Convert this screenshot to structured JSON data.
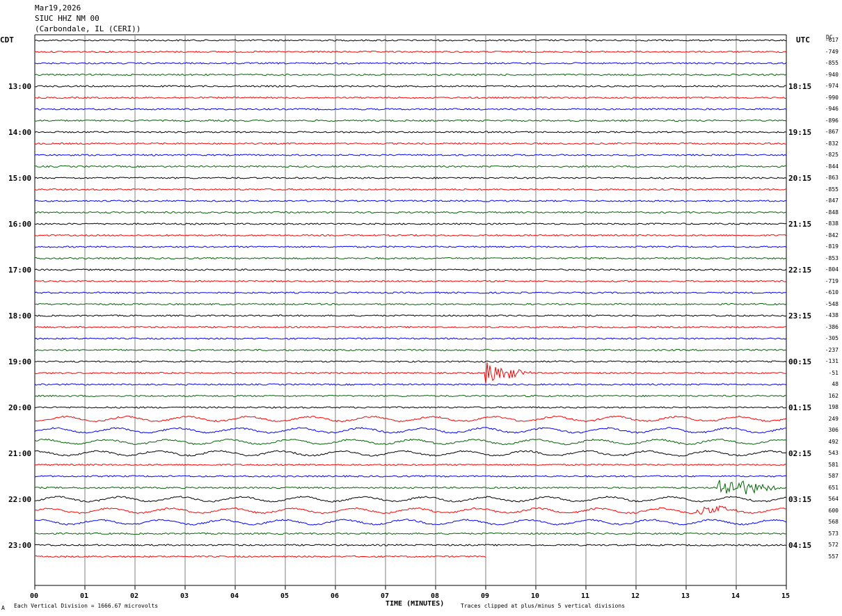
{
  "header": {
    "date": "Mar19,2026",
    "station": "SIUC HHZ NM 00",
    "location": "(Carbondale, IL (CERI))"
  },
  "left_tz": "CDT",
  "right_tz": "UTC",
  "dc_header": "DC",
  "left_times": [
    "13:00",
    "14:00",
    "15:00",
    "16:00",
    "17:00",
    "18:00",
    "19:00",
    "20:00",
    "21:00",
    "22:00",
    "23:00"
  ],
  "right_times": [
    "18:15",
    "19:15",
    "20:15",
    "21:15",
    "22:15",
    "23:15",
    "00:15",
    "01:15",
    "02:15",
    "03:15",
    "04:15"
  ],
  "footer": {
    "scale": "Each Vertical Division = 1666.67 microvolts",
    "xlabel": "TIME (MINUTES)",
    "clip": "Traces clipped at plus/minus 5 vertical divisions",
    "corner": "A"
  },
  "colors": {
    "black": "#000000",
    "red": "#ff0000",
    "blue": "#0000ff",
    "green": "#006400",
    "grid": "#808080"
  },
  "chart_data": {
    "type": "line",
    "title": "SIUC HHZ NM 00",
    "xlabel": "TIME (MINUTES)",
    "xlim": [
      0,
      15
    ],
    "x_ticks": [
      "00",
      "01",
      "02",
      "03",
      "04",
      "05",
      "06",
      "07",
      "08",
      "09",
      "10",
      "11",
      "12",
      "13",
      "14",
      "15"
    ],
    "trace_color_cycle": [
      "black",
      "red",
      "blue",
      "green"
    ],
    "dc_offsets": [
      "-617",
      "-749",
      "-855",
      "-940",
      "-974",
      "-990",
      "-946",
      "-896",
      "-867",
      "-832",
      "-825",
      "-844",
      "-863",
      "-855",
      "-847",
      "-848",
      "-838",
      "-842",
      "-819",
      "-853",
      "-804",
      "-719",
      "-610",
      "-548",
      "-438",
      "-386",
      "-305",
      "-237",
      "-131",
      "-51",
      "48",
      "162",
      "198",
      "249",
      "306",
      "492",
      "543",
      "581",
      "587",
      "651",
      "564",
      "600",
      "568",
      "573",
      "572",
      "557"
    ],
    "trace_count": 46,
    "last_trace_end_minute": 9,
    "events": [
      {
        "trace": 29,
        "start_min": 9.0,
        "end_min": 10.0,
        "amplitude": "large"
      },
      {
        "trace": 39,
        "start_min": 13.6,
        "end_min": 15.0,
        "amplitude": "large"
      },
      {
        "trace": 41,
        "start_min": 13.2,
        "end_min": 14.2,
        "amplitude": "medium"
      }
    ]
  }
}
